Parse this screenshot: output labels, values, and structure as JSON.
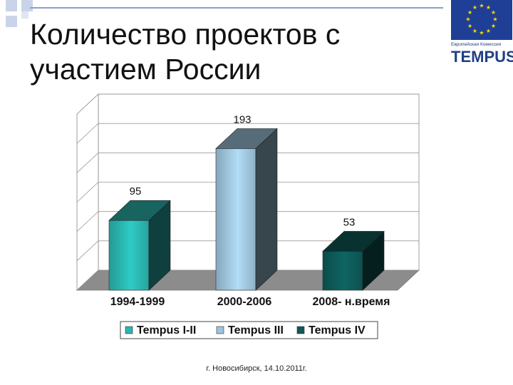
{
  "slide": {
    "title_lines": [
      "Количество проектов с",
      "участием России"
    ],
    "footer": "г. Новосибирск, 14.10.2011г."
  },
  "logo": {
    "caption": "Европейская Комиссия",
    "word": "TEMPUS",
    "flag_color": "#1f3f96",
    "star_color": "#ffd700"
  },
  "chart_data": {
    "type": "bar",
    "title": "",
    "xlabel": "",
    "ylabel": "",
    "ylim": [
      0,
      240
    ],
    "grid": true,
    "legend_position": "bottom",
    "categories": [
      "1994-1999",
      "2000-2006",
      "2008- н.время"
    ],
    "series": [
      {
        "name": "Tempus I-II",
        "color": "#2ab5b0",
        "category_index": 0,
        "value": 95
      },
      {
        "name": "Tempus III",
        "color": "#9ec4dc",
        "category_index": 1,
        "value": 193
      },
      {
        "name": "Tempus IV",
        "color": "#0d5a58",
        "category_index": 2,
        "value": 53
      }
    ]
  }
}
